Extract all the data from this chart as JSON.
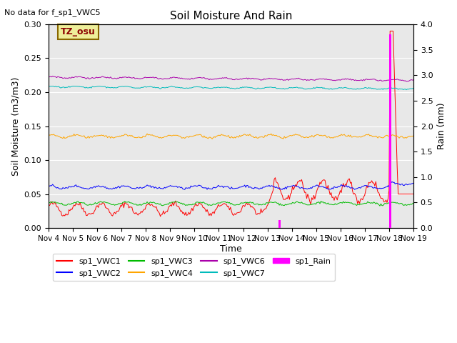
{
  "title": "Soil Moisture And Rain",
  "top_left_text": "No data for f_sp1_VWC5",
  "annotation_text": "TZ_osu",
  "xlabel": "Time",
  "ylabel_left": "Soil Moisture (m3/m3)",
  "ylabel_right": "Rain (mm)",
  "ylim_left": [
    0.0,
    0.3
  ],
  "ylim_right": [
    0.0,
    4.0
  ],
  "x_start": 4,
  "x_end": 19,
  "x_ticks": [
    4,
    5,
    6,
    7,
    8,
    9,
    10,
    11,
    12,
    13,
    14,
    15,
    16,
    17,
    18,
    19
  ],
  "x_tick_labels": [
    "Nov 4",
    "Nov 5",
    "Nov 6",
    "Nov 7",
    "Nov 8",
    "Nov 9",
    "Nov 10",
    "Nov 11",
    "Nov 12",
    "Nov 13",
    "Nov 14",
    "Nov 15",
    "Nov 16",
    "Nov 17",
    "Nov 18",
    "Nov 19"
  ],
  "colors": {
    "sp1_VWC1": "#ff0000",
    "sp1_VWC2": "#0000ff",
    "sp1_VWC3": "#00bb00",
    "sp1_VWC4": "#ffa500",
    "sp1_VWC6": "#aa00aa",
    "sp1_VWC7": "#00bbbb",
    "sp1_Rain": "#ff00ff"
  },
  "background_color": "#e8e8e8",
  "grid_color": "#ffffff",
  "figsize": [
    6.4,
    4.8
  ],
  "dpi": 100
}
